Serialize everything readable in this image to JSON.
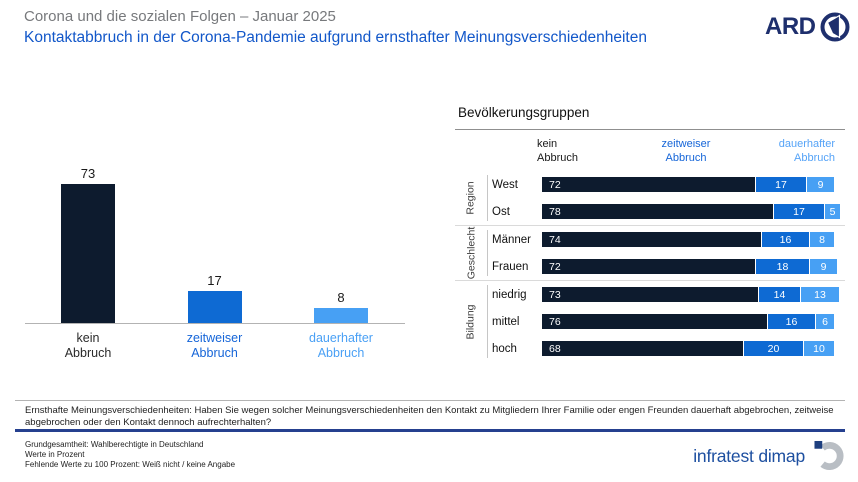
{
  "header": {
    "supertitle": "Corona und die sozialen Folgen – Januar 2025",
    "title": "Kontaktabbruch in der Corona-Pandemie aufgrund ernsthafter Meinungsverschiedenheiten",
    "ard_label": "ARD"
  },
  "colors": {
    "kein_abbruch": "#0d1b2e",
    "zeitweiser_abbruch": "#0e6ad3",
    "dauerhafter_abbruch": "#47a0f4",
    "headline_blue": "#1257c9",
    "supertitle_gray": "#77797c",
    "ard_navy": "#1e2f6d",
    "infratest_blue": "#1d4fa0"
  },
  "chart_data": [
    {
      "type": "bar",
      "orientation": "vertical",
      "categories": [
        "kein Abbruch",
        "zeitweiser Abbruch",
        "dauerhafter Abbruch"
      ],
      "display_labels": [
        "kein\nAbbruch",
        "zeitweiser\nAbbruch",
        "dauerhafter\nAbbruch"
      ],
      "values": [
        73,
        17,
        8
      ],
      "ylim": [
        0,
        100
      ],
      "grid": false,
      "value_labels": true,
      "bar_colors": [
        "#0d1b2e",
        "#0e6ad3",
        "#47a0f4"
      ],
      "label_colors": [
        "#2b2b2b",
        "#1565d8",
        "#4aa0f5"
      ]
    },
    {
      "type": "bar",
      "orientation": "horizontal-stacked",
      "title": "Bevölkerungsgruppen",
      "series_names": [
        "kein Abbruch",
        "zeitweiser Abbruch",
        "dauerhafter Abbruch"
      ],
      "col_headers": [
        "kein\nAbbruch",
        "zeitweiser\nAbbruch",
        "dauerhafter\nAbbruch"
      ],
      "colors": [
        "#0d1b2e",
        "#0e6ad3",
        "#47a0f4"
      ],
      "xlim": [
        0,
        100
      ],
      "groups": [
        {
          "name": "Region",
          "rows": [
            {
              "label": "West",
              "values": [
                72,
                17,
                9
              ]
            },
            {
              "label": "Ost",
              "values": [
                78,
                17,
                5
              ]
            }
          ]
        },
        {
          "name": "Geschlecht",
          "rows": [
            {
              "label": "Männer",
              "values": [
                74,
                16,
                8
              ]
            },
            {
              "label": "Frauen",
              "values": [
                72,
                18,
                9
              ]
            }
          ]
        },
        {
          "name": "Bildung",
          "rows": [
            {
              "label": "niedrig",
              "values": [
                73,
                14,
                13
              ]
            },
            {
              "label": "mittel",
              "values": [
                76,
                16,
                6
              ]
            },
            {
              "label": "hoch",
              "values": [
                68,
                20,
                10
              ]
            }
          ]
        }
      ]
    }
  ],
  "footer": {
    "question": "Ernsthafte Meinungsverschiedenheiten: Haben Sie wegen solcher Meinungsverschiedenheiten den Kontakt zu Mitgliedern Ihrer Familie oder engen Freunden dauerhaft abgebrochen, zeitweise abgebrochen oder den Kontakt dennoch aufrechterhalten?",
    "notes": [
      "Grundgesamtheit: Wahlberechtigte in Deutschland",
      "Werte in Prozent",
      "Fehlende Werte zu 100 Prozent: Weiß nicht / keine Angabe"
    ],
    "brand": "infratest dimap"
  }
}
